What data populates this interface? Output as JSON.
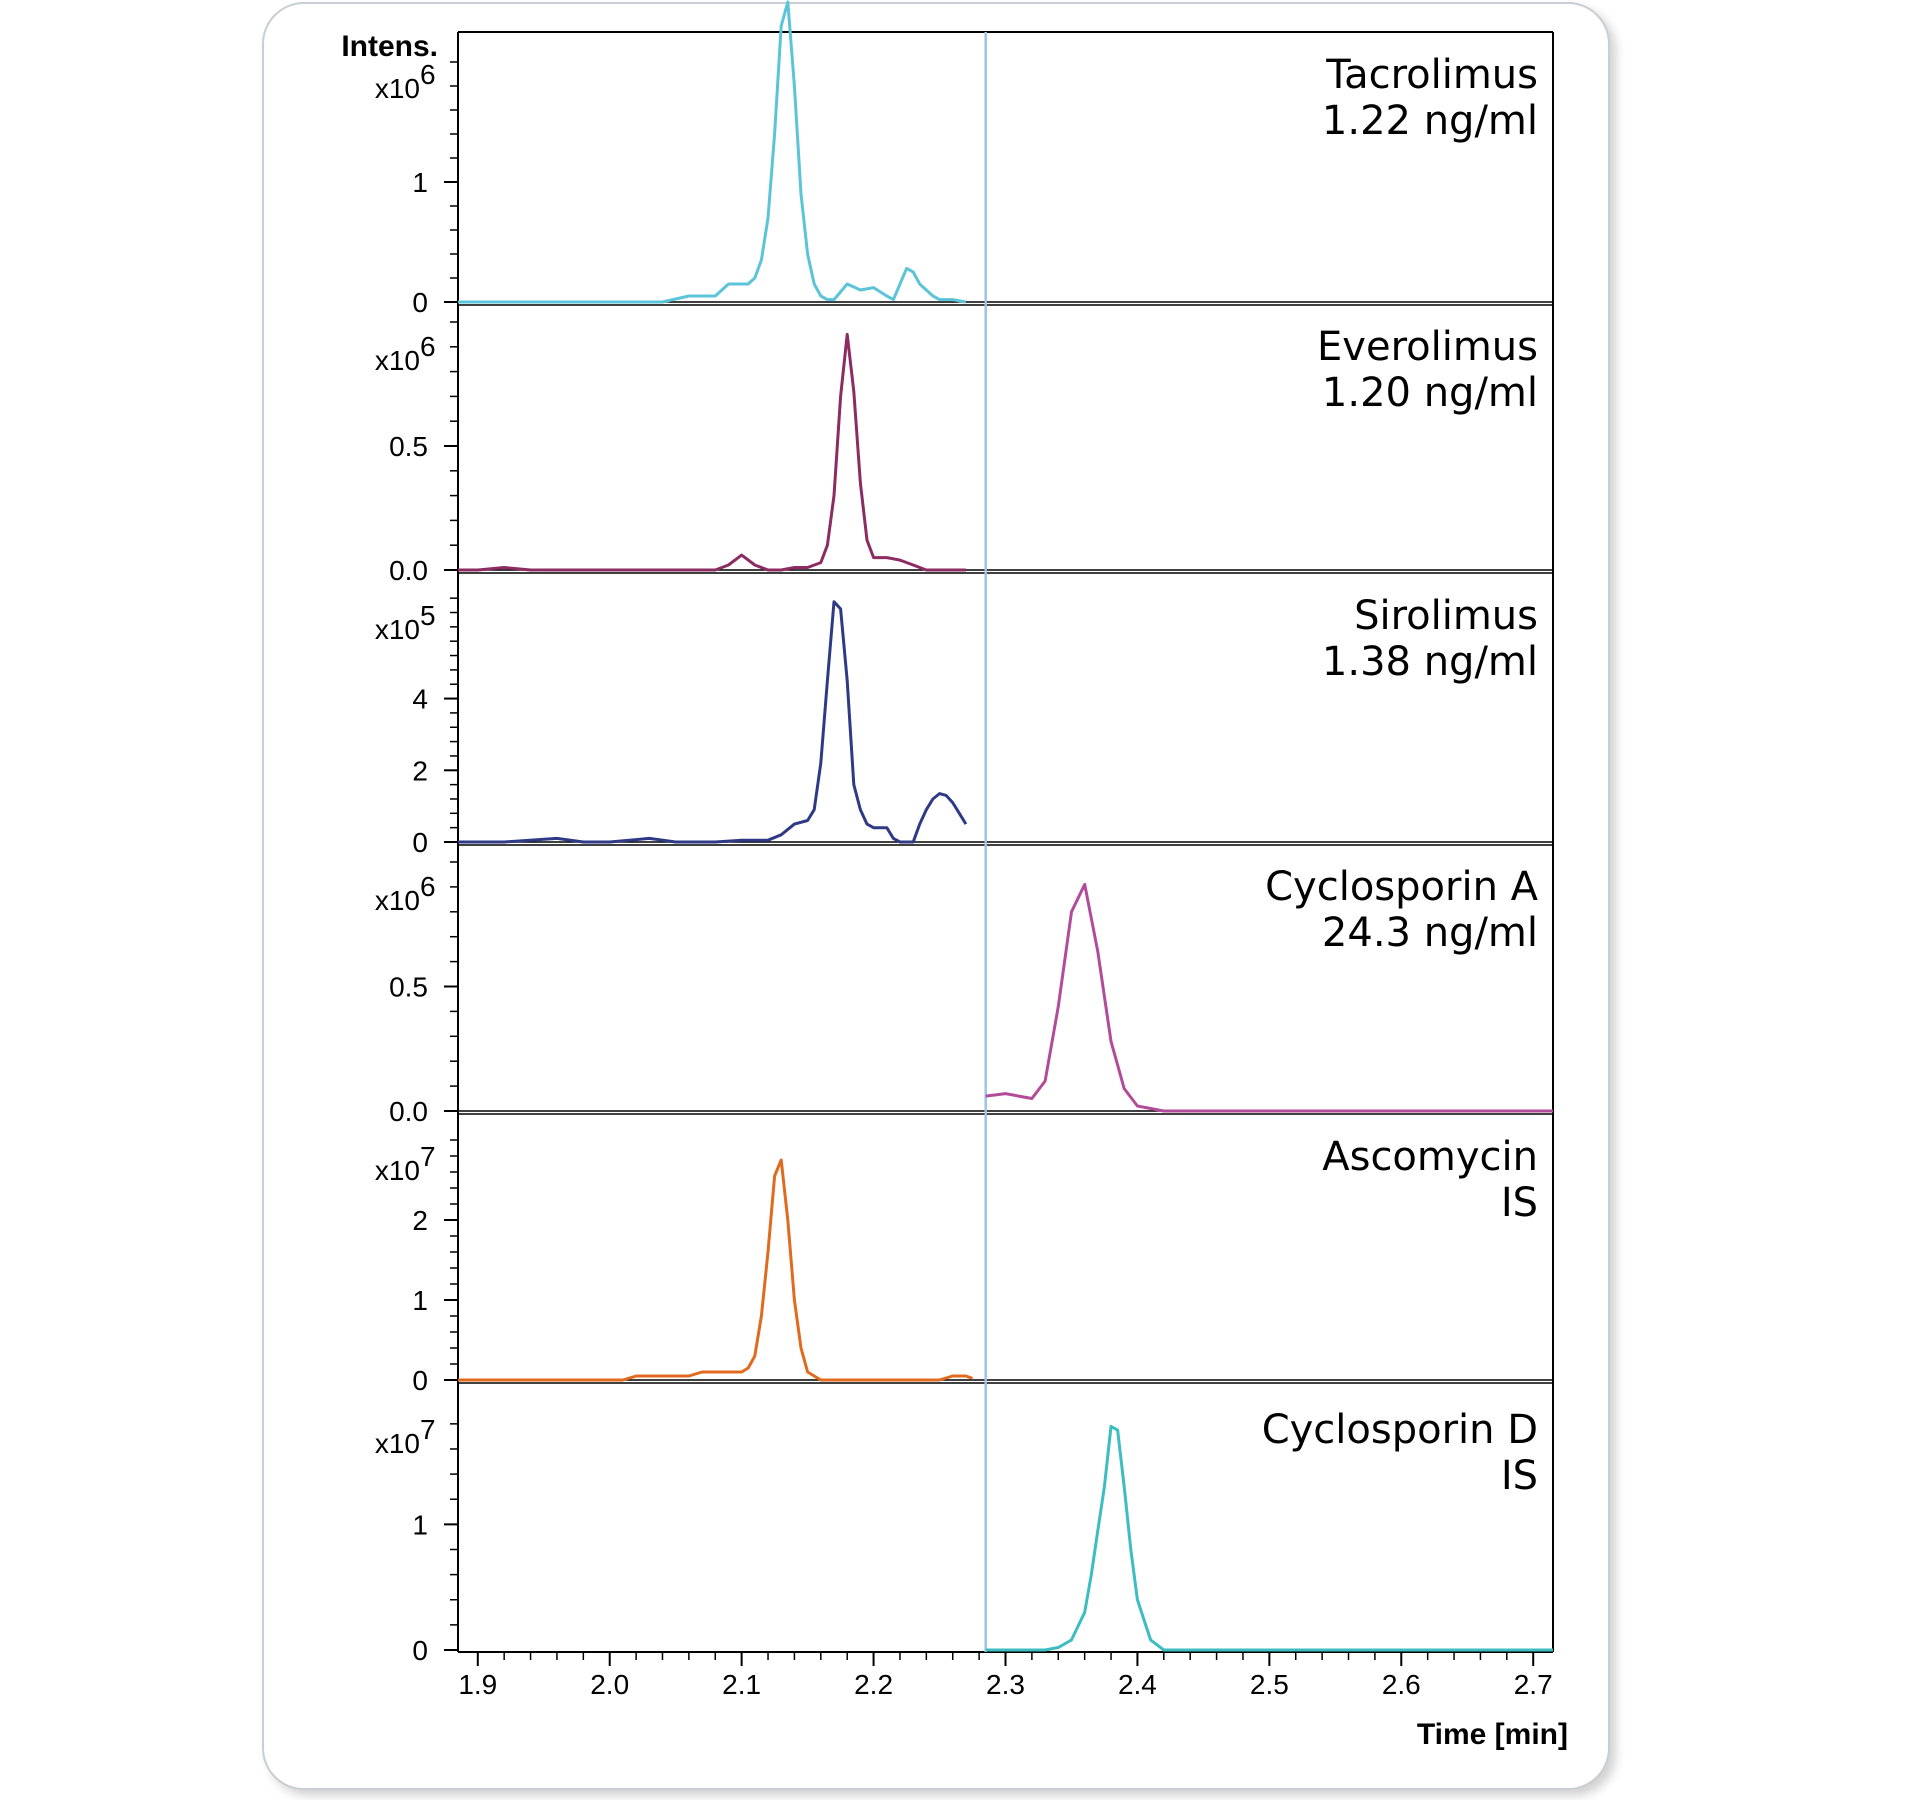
{
  "chart_data": {
    "type": "line",
    "ylabel": "Intens.",
    "xlabel": "Time [min]",
    "xlim": [
      1.885,
      2.715
    ],
    "x_ticks": [
      1.9,
      2.0,
      2.1,
      2.2,
      2.3,
      2.4,
      2.5,
      2.6,
      2.7
    ],
    "x_tick_labels": [
      "1.9",
      "2.0",
      "2.1",
      "2.2",
      "2.3",
      "2.4",
      "2.5",
      "2.6",
      "2.7"
    ],
    "segment_switch_time": 2.285,
    "panels": [
      {
        "name": "Tacrolimus",
        "label_lines": [
          "Tacrolimus",
          "1.22 ng/ml"
        ],
        "exponent_label": "x10",
        "exponent": "6",
        "unit_scale": 1000000,
        "ylim": [
          0,
          2.1
        ],
        "y_ticks": [
          0,
          1
        ],
        "y_tick_labels": [
          "0",
          "1"
        ],
        "color": "#5bc4d8",
        "x": [
          1.885,
          1.92,
          1.95,
          1.98,
          2.0,
          2.04,
          2.06,
          2.08,
          2.09,
          2.1,
          2.105,
          2.11,
          2.115,
          2.12,
          2.125,
          2.13,
          2.135,
          2.14,
          2.145,
          2.15,
          2.155,
          2.16,
          2.165,
          2.17,
          2.18,
          2.19,
          2.2,
          2.21,
          2.215,
          2.22,
          2.225,
          2.23,
          2.235,
          2.24,
          2.245,
          2.25,
          2.26,
          2.27
        ],
        "y": [
          0,
          0,
          0,
          0,
          0,
          0,
          0.05,
          0.05,
          0.15,
          0.15,
          0.15,
          0.2,
          0.35,
          0.7,
          1.4,
          2.3,
          2.5,
          1.8,
          0.9,
          0.4,
          0.15,
          0.05,
          0.02,
          0.02,
          0.15,
          0.1,
          0.12,
          0.05,
          0.02,
          0.15,
          0.28,
          0.25,
          0.15,
          0.1,
          0.05,
          0.02,
          0.02,
          0.0
        ]
      },
      {
        "name": "Everolimus",
        "label_lines": [
          "Everolimus",
          "1.20 ng/ml"
        ],
        "exponent_label": "x10",
        "exponent": "6",
        "unit_scale": 1000000,
        "ylim": [
          0,
          1.0
        ],
        "y_ticks": [
          0.0,
          0.5
        ],
        "y_tick_labels": [
          "0.0",
          "0.5"
        ],
        "color": "#8c2c62",
        "x": [
          1.885,
          1.9,
          1.92,
          1.94,
          1.96,
          1.99,
          2.01,
          2.05,
          2.08,
          2.09,
          2.1,
          2.11,
          2.12,
          2.13,
          2.14,
          2.15,
          2.16,
          2.165,
          2.17,
          2.175,
          2.18,
          2.185,
          2.19,
          2.195,
          2.2,
          2.205,
          2.21,
          2.22,
          2.23,
          2.24,
          2.25,
          2.27
        ],
        "y": [
          0,
          0,
          0.01,
          0,
          0,
          0,
          0,
          0,
          0,
          0.02,
          0.06,
          0.02,
          0,
          0,
          0.01,
          0.01,
          0.03,
          0.1,
          0.3,
          0.7,
          0.95,
          0.72,
          0.35,
          0.12,
          0.05,
          0.05,
          0.05,
          0.04,
          0.02,
          0,
          0,
          0
        ]
      },
      {
        "name": "Sirolimus",
        "label_lines": [
          "Sirolimus",
          "1.38 ng/ml"
        ],
        "exponent_label": "x10",
        "exponent": "5",
        "unit_scale": 100000,
        "ylim": [
          0,
          7.0
        ],
        "y_ticks": [
          0,
          2,
          4
        ],
        "y_tick_labels": [
          "0",
          "2",
          "4"
        ],
        "color": "#2f3a86",
        "x": [
          1.885,
          1.92,
          1.96,
          1.98,
          2.0,
          2.03,
          2.05,
          2.08,
          2.1,
          2.12,
          2.13,
          2.14,
          2.15,
          2.155,
          2.16,
          2.165,
          2.17,
          2.175,
          2.18,
          2.185,
          2.19,
          2.195,
          2.2,
          2.205,
          2.21,
          2.215,
          2.22,
          2.23,
          2.235,
          2.24,
          2.245,
          2.25,
          2.255,
          2.26,
          2.265,
          2.27
        ],
        "y": [
          0,
          0,
          0.1,
          0,
          0,
          0.1,
          0,
          0,
          0.05,
          0.05,
          0.2,
          0.5,
          0.6,
          0.9,
          2.2,
          4.5,
          6.7,
          6.5,
          4.5,
          1.6,
          0.9,
          0.5,
          0.4,
          0.4,
          0.4,
          0.1,
          0,
          0,
          0.5,
          0.9,
          1.2,
          1.35,
          1.3,
          1.1,
          0.8,
          0.5
        ]
      },
      {
        "name": "Cyclosporin A",
        "label_lines": [
          "Cyclosporin A",
          "24.3 ng/ml"
        ],
        "exponent_label": "x10",
        "exponent": "6",
        "unit_scale": 1000000,
        "ylim": [
          0,
          1.0
        ],
        "y_ticks": [
          0.0,
          0.5
        ],
        "y_tick_labels": [
          "0.0",
          "0.5"
        ],
        "color": "#b24c9a",
        "x": [
          2.285,
          2.3,
          2.31,
          2.32,
          2.33,
          2.34,
          2.35,
          2.36,
          2.37,
          2.38,
          2.39,
          2.4,
          2.42,
          2.45,
          2.5,
          2.6,
          2.7,
          2.715
        ],
        "y": [
          0.06,
          0.07,
          0.06,
          0.05,
          0.12,
          0.42,
          0.8,
          0.91,
          0.64,
          0.28,
          0.09,
          0.02,
          0,
          0,
          0,
          0,
          0,
          0
        ]
      },
      {
        "name": "Ascomycin",
        "label_lines": [
          "Ascomycin",
          "IS"
        ],
        "exponent_label": "x10",
        "exponent": "7",
        "unit_scale": 10000000,
        "ylim": [
          0,
          3.1
        ],
        "y_ticks": [
          0,
          1,
          2
        ],
        "y_tick_labels": [
          "0",
          "1",
          "2"
        ],
        "color": "#e06a1e",
        "x": [
          1.885,
          1.95,
          2.01,
          2.02,
          2.06,
          2.07,
          2.09,
          2.1,
          2.105,
          2.11,
          2.115,
          2.12,
          2.125,
          2.13,
          2.135,
          2.14,
          2.145,
          2.15,
          2.16,
          2.17,
          2.2,
          2.25,
          2.26,
          2.265,
          2.27,
          2.275
        ],
        "y": [
          0,
          0,
          0,
          0.05,
          0.05,
          0.1,
          0.1,
          0.1,
          0.15,
          0.3,
          0.8,
          1.6,
          2.55,
          2.75,
          2.0,
          1.0,
          0.4,
          0.1,
          0,
          0,
          0,
          0,
          0.05,
          0.05,
          0.05,
          0.02
        ]
      },
      {
        "name": "Cyclosporin D",
        "label_lines": [
          "Cyclosporin D",
          "IS"
        ],
        "exponent_label": "x10",
        "exponent": "7",
        "unit_scale": 10000000,
        "ylim": [
          0,
          1.95
        ],
        "y_ticks": [
          0,
          1
        ],
        "y_tick_labels": [
          "0",
          "1"
        ],
        "color": "#3dbdc2",
        "x": [
          2.285,
          2.3,
          2.33,
          2.34,
          2.35,
          2.36,
          2.365,
          2.37,
          2.375,
          2.38,
          2.385,
          2.39,
          2.395,
          2.4,
          2.41,
          2.42,
          2.5,
          2.6,
          2.715
        ],
        "y": [
          0,
          0,
          0,
          0.02,
          0.08,
          0.3,
          0.6,
          0.95,
          1.3,
          1.78,
          1.75,
          1.3,
          0.8,
          0.4,
          0.08,
          0,
          0,
          0,
          0
        ]
      }
    ]
  }
}
